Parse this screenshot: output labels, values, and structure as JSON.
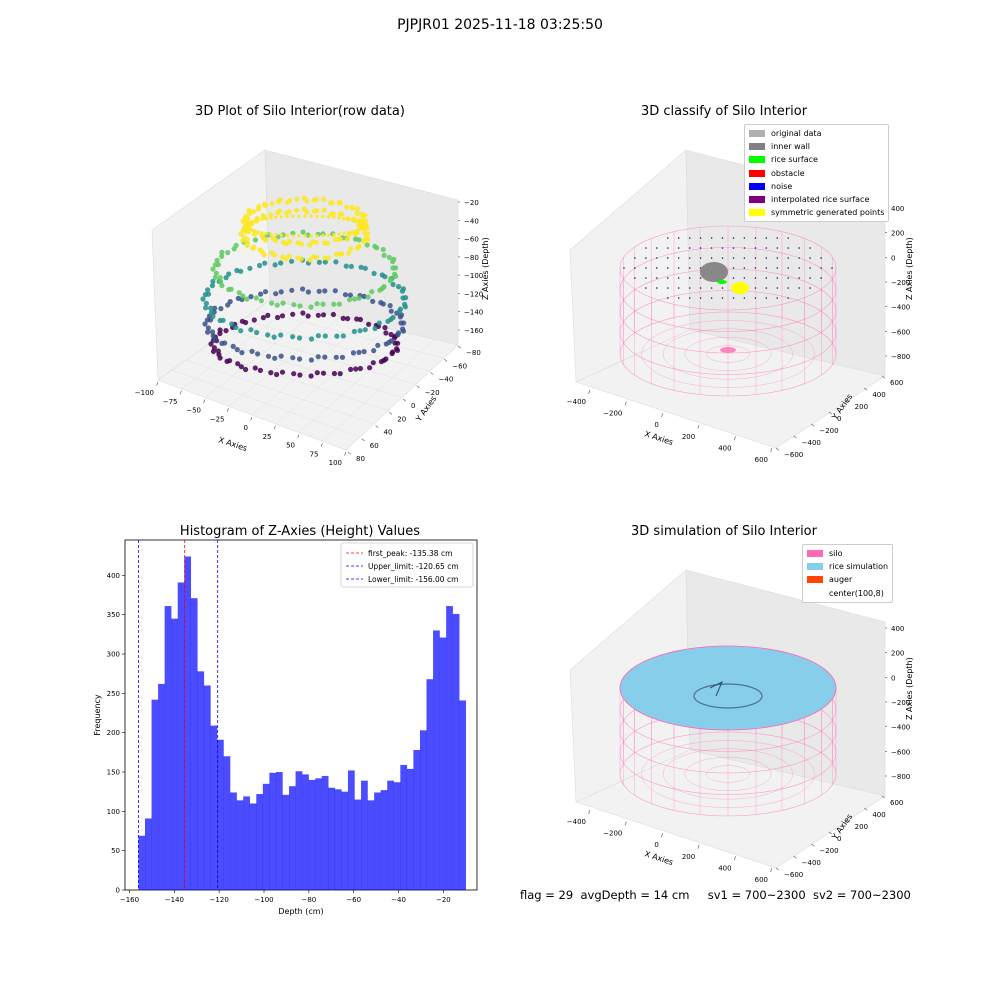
{
  "suptitle": "PJPJR01 2025-11-18 03:25:50",
  "panels": {
    "raw": {
      "title": "3D Plot of Silo Interior(row data)",
      "xlabel": "X Axies",
      "ylabel": "Y Axies",
      "zlabel": "Z Axies (Depth)",
      "xticks": [
        "−100",
        "−75",
        "−50",
        "−25",
        "0",
        "25",
        "50",
        "75",
        "100"
      ],
      "yticks": [
        "−80",
        "−60",
        "−40",
        "−20",
        "0",
        "20",
        "40",
        "60",
        "80"
      ],
      "zticks": [
        "−20",
        "−40",
        "−60",
        "−80",
        "−100",
        "−120",
        "−140",
        "−160"
      ]
    },
    "classify": {
      "title": "3D classify of Silo Interior",
      "xlabel": "X Axies",
      "ylabel": "Y Axies",
      "zlabel": "Z Axies (Depth)",
      "xticks": [
        "−400",
        "−200",
        "0",
        "200",
        "400",
        "600"
      ],
      "yticks": [
        "600",
        "400",
        "200",
        "0",
        "−200",
        "−400",
        "−600"
      ],
      "zticks": [
        "400",
        "200",
        "0",
        "−200",
        "−400",
        "−600",
        "−800"
      ],
      "legend": [
        {
          "label": "original data",
          "color": "#b0b0b0"
        },
        {
          "label": "inner wall",
          "color": "#808080"
        },
        {
          "label": "rice surface",
          "color": "#00ff00"
        },
        {
          "label": "obstacle",
          "color": "#ff0000"
        },
        {
          "label": "noise",
          "color": "#0000ff"
        },
        {
          "label": "interpolated rice surface",
          "color": "#800080"
        },
        {
          "label": "symmetric generated points",
          "color": "#ffff00"
        }
      ]
    },
    "sim": {
      "title": "3D simulation of Silo Interior",
      "xlabel": "X Axies",
      "ylabel": "Y Axies",
      "zlabel": "Z Axies (Depth)",
      "xticks": [
        "−400",
        "−200",
        "0",
        "200",
        "400",
        "600"
      ],
      "yticks": [
        "600",
        "400",
        "200",
        "0",
        "−200",
        "−400",
        "−600"
      ],
      "zticks": [
        "400",
        "200",
        "0",
        "−200",
        "−400",
        "−600",
        "−800"
      ],
      "legend": [
        {
          "label": "silo",
          "color": "#ff69b4"
        },
        {
          "label": "rice simulation",
          "color": "#87ceeb"
        },
        {
          "label": "auger",
          "color": "#ff4500"
        },
        {
          "label": "center(100,8)",
          "color": ""
        }
      ]
    }
  },
  "chart_data": {
    "type": "bar",
    "title": "Histogram of Z-Axies (Height) Values",
    "xlabel": "Depth (cm)",
    "ylabel": "Frequency",
    "xlim": [
      -162,
      -5
    ],
    "ylim": [
      0,
      445
    ],
    "xticks": [
      -160,
      -140,
      -120,
      -100,
      -80,
      -60,
      -40,
      -20
    ],
    "yticks": [
      0,
      50,
      100,
      150,
      200,
      250,
      300,
      350,
      400
    ],
    "bar_color": "#0000ff",
    "bin_start": -156,
    "bin_width": 2.92,
    "values": [
      69,
      91,
      242,
      262,
      361,
      345,
      391,
      424,
      371,
      278,
      260,
      209,
      191,
      170,
      124,
      114,
      119,
      110,
      122,
      135,
      149,
      150,
      121,
      132,
      151,
      147,
      140,
      142,
      145,
      130,
      128,
      125,
      152,
      115,
      139,
      114,
      124,
      127,
      139,
      137,
      159,
      154,
      178,
      203,
      268,
      330,
      321,
      361,
      351,
      241
    ],
    "lines": [
      {
        "label": "first_peak: -135.38 cm",
        "x": -135.38,
        "color": "#ff0000"
      },
      {
        "label": "Upper_limit: -120.65 cm",
        "x": -120.65,
        "color": "#0000ff"
      },
      {
        "label": "Lower_limit: -156.00 cm",
        "x": -156.0,
        "color": "#0000ff"
      }
    ]
  },
  "footer": {
    "flag": "flag = 29",
    "avg": "avgDepth = 14 cm",
    "sv1": "sv1 = 700~2300",
    "sv2": "sv2 = 700~2300"
  }
}
